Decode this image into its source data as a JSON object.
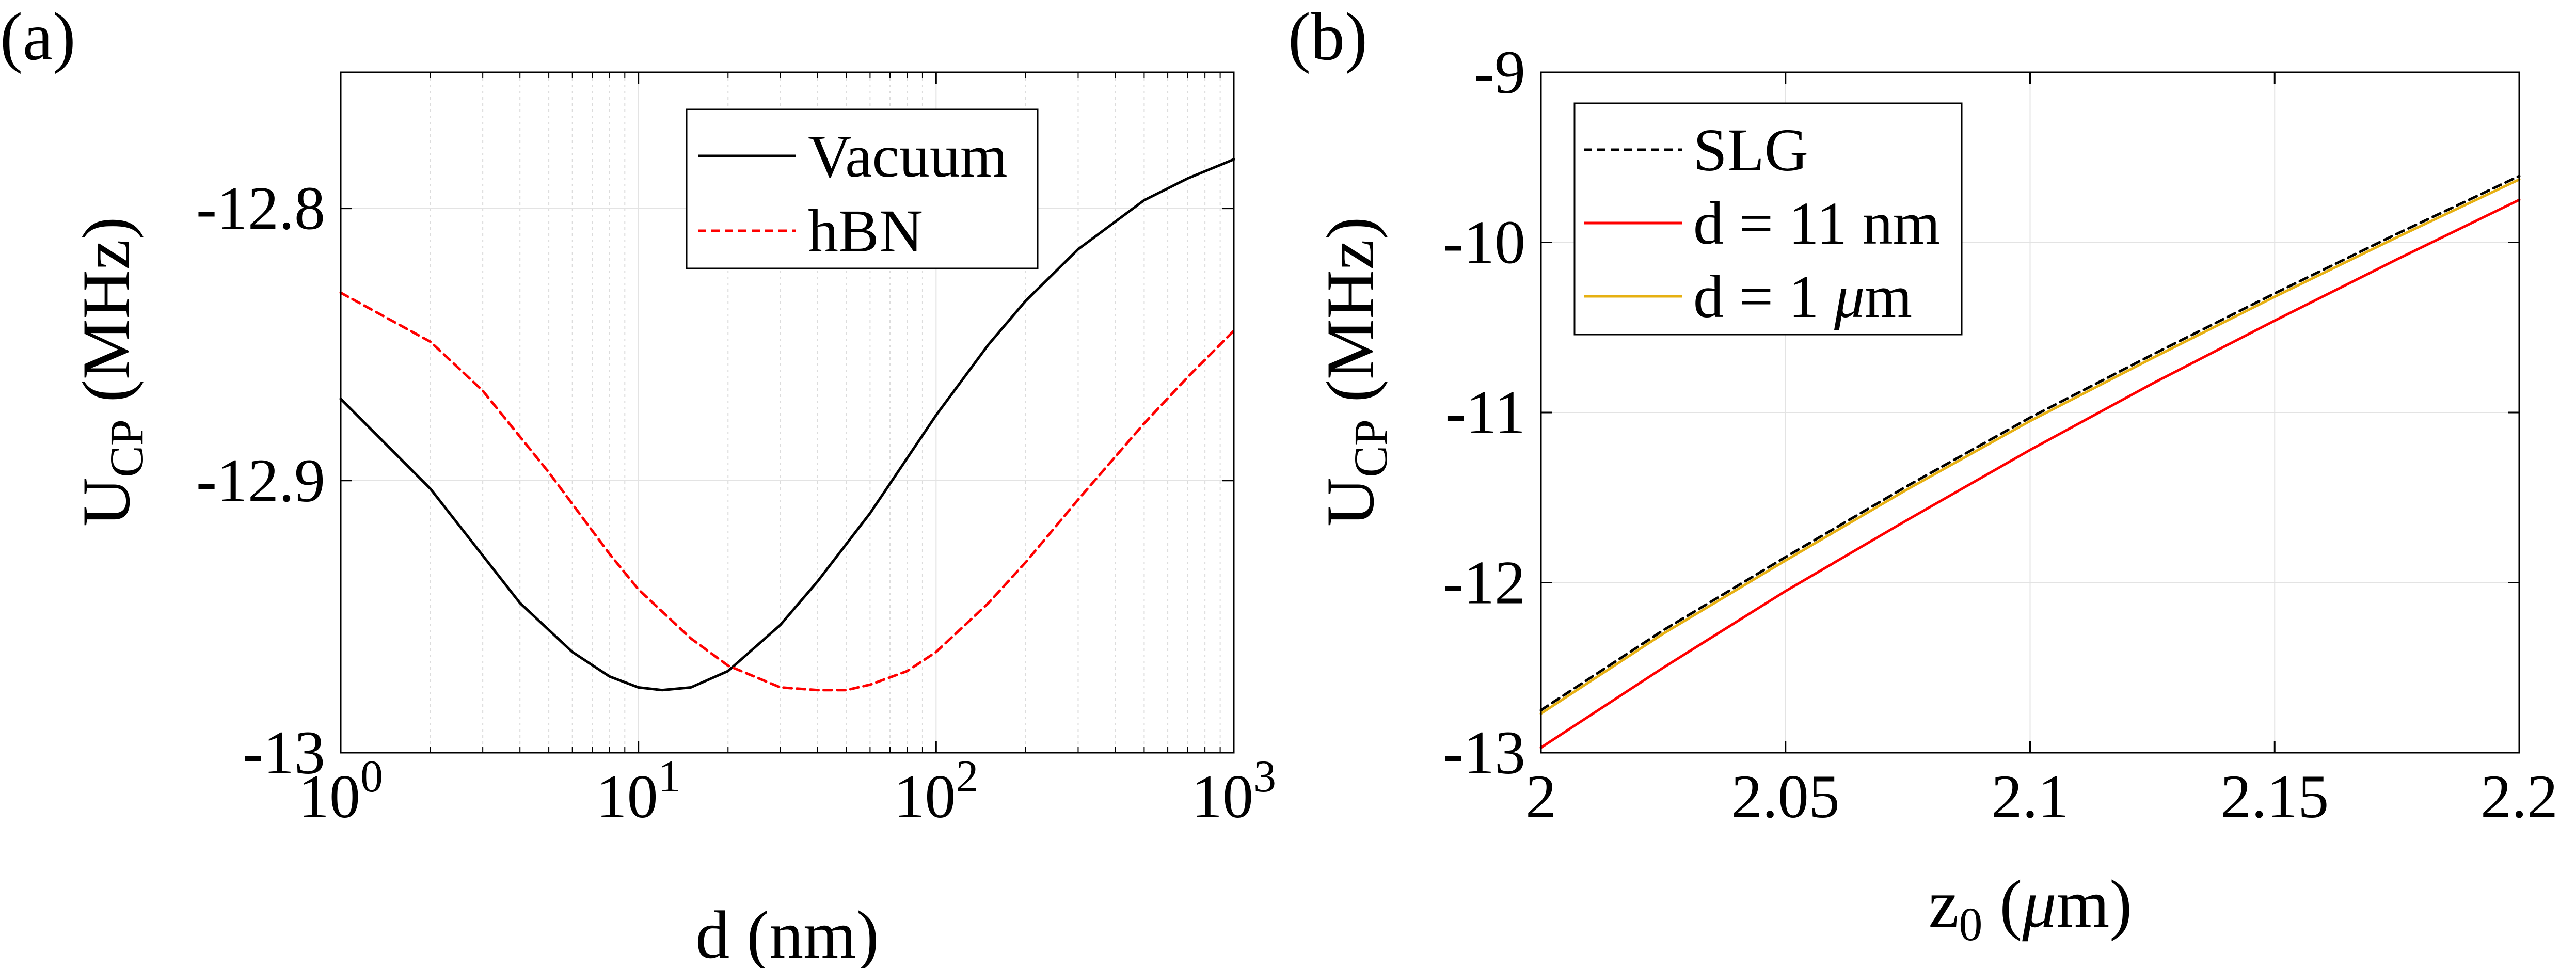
{
  "chart_data": [
    {
      "panel": "(a)",
      "type": "line",
      "xscale": "log",
      "xlabel": "d (nm)",
      "ylabel": {
        "main": "U",
        "sub": "CP",
        "rest": " (MHz)"
      },
      "xlim": [
        1,
        1000
      ],
      "ylim": [
        -13,
        -12.75
      ],
      "xticks": [
        {
          "value": 1,
          "base": "10",
          "exp": "0"
        },
        {
          "value": 10,
          "base": "10",
          "exp": "1"
        },
        {
          "value": 100,
          "base": "10",
          "exp": "2"
        },
        {
          "value": 1000,
          "base": "10",
          "exp": "3"
        }
      ],
      "yticks": [
        {
          "value": -13,
          "label": "-13"
        },
        {
          "value": -12.9,
          "label": "-12.9"
        },
        {
          "value": -12.8,
          "label": "-12.8"
        }
      ],
      "grid": true,
      "minor_grid": true,
      "legend_position": "top-right",
      "series": [
        {
          "name": "Vacuum",
          "color": "#000000",
          "dash": "solid",
          "x": [
            1,
            2,
            4,
            6,
            8,
            10,
            12,
            15,
            20,
            30,
            40,
            60,
            100,
            150,
            200,
            300,
            500,
            700,
            1000
          ],
          "y": [
            -12.87,
            -12.903,
            -12.945,
            -12.963,
            -12.972,
            -12.976,
            -12.977,
            -12.976,
            -12.97,
            -12.953,
            -12.937,
            -12.912,
            -12.876,
            -12.85,
            -12.834,
            -12.815,
            -12.797,
            -12.789,
            -12.782
          ]
        },
        {
          "name": "hBN",
          "color": "#ff0000",
          "dash": "dashed",
          "x": [
            1,
            2,
            3,
            5,
            8,
            10,
            15,
            20,
            30,
            40,
            50,
            60,
            80,
            100,
            150,
            200,
            300,
            500,
            700,
            1000
          ],
          "y": [
            -12.831,
            -12.849,
            -12.867,
            -12.897,
            -12.927,
            -12.94,
            -12.958,
            -12.968,
            -12.976,
            -12.977,
            -12.977,
            -12.975,
            -12.97,
            -12.963,
            -12.945,
            -12.93,
            -12.907,
            -12.879,
            -12.862,
            -12.845
          ]
        }
      ]
    },
    {
      "panel": "(b)",
      "type": "line",
      "xscale": "linear",
      "xlabel": {
        "main": "z",
        "sub": "0",
        "rest": " (",
        "mu": "μ",
        "unit": "m)"
      },
      "ylabel": {
        "main": "U",
        "sub": "CP",
        "rest": " (MHz)"
      },
      "xlim": [
        2,
        2.2
      ],
      "ylim": [
        -13,
        -9
      ],
      "xticks": [
        {
          "value": 2,
          "label": "2"
        },
        {
          "value": 2.05,
          "label": "2.05"
        },
        {
          "value": 2.1,
          "label": "2.1"
        },
        {
          "value": 2.15,
          "label": "2.15"
        },
        {
          "value": 2.2,
          "label": "2.2"
        }
      ],
      "yticks": [
        {
          "value": -13,
          "label": "-13"
        },
        {
          "value": -12,
          "label": "-12"
        },
        {
          "value": -11,
          "label": "-11"
        },
        {
          "value": -10,
          "label": "-10"
        },
        {
          "value": -9,
          "label": "-9"
        }
      ],
      "grid": true,
      "legend_position": "top-left",
      "series": [
        {
          "name": "SLG",
          "color": "#000000",
          "dash": "dashed",
          "x": [
            2,
            2.025,
            2.05,
            2.075,
            2.1,
            2.125,
            2.15,
            2.175,
            2.2
          ],
          "y": [
            -12.75,
            -12.28,
            -11.85,
            -11.43,
            -11.03,
            -10.66,
            -10.3,
            -9.95,
            -9.61
          ]
        },
        {
          "name": "d = 11 nm",
          "color": "#ff0000",
          "dash": "solid",
          "x": [
            2,
            2.025,
            2.05,
            2.075,
            2.1,
            2.125,
            2.15,
            2.175,
            2.2
          ],
          "y": [
            -12.97,
            -12.5,
            -12.05,
            -11.63,
            -11.22,
            -10.83,
            -10.46,
            -10.1,
            -9.75
          ]
        },
        {
          "name": "d = 1 μm",
          "label_prefix": "d = 1 ",
          "label_mu": "μ",
          "label_unit": "m",
          "color": "#e6b012",
          "dash": "solid",
          "x": [
            2,
            2.025,
            2.05,
            2.075,
            2.1,
            2.125,
            2.15,
            2.175,
            2.2
          ],
          "y": [
            -12.77,
            -12.3,
            -11.87,
            -11.45,
            -11.05,
            -10.68,
            -10.32,
            -9.97,
            -9.63
          ]
        }
      ]
    }
  ]
}
